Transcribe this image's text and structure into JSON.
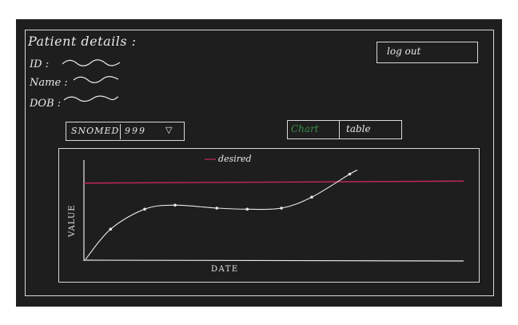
{
  "patient": {
    "heading": "Patient details :",
    "id_label": "ID :",
    "name_label": "Name :",
    "dob_label": "DOB :"
  },
  "header": {
    "logout_label": "log   out"
  },
  "code_select": {
    "system": "SNOMED",
    "value": "999",
    "arrow": "▽"
  },
  "view_toggle": {
    "chart_label": "Chart",
    "table_label": "table",
    "active": "chart",
    "active_color": "#3a8f4a"
  },
  "chart_data": {
    "type": "line",
    "xlabel": "DATE",
    "ylabel": "VALUE",
    "legend": [
      {
        "name": "desired",
        "color": "#c2285a"
      }
    ],
    "desired_line": {
      "y_start": 0.77,
      "y_end": 0.79,
      "color": "#c2285a"
    },
    "series": [
      {
        "name": "",
        "color": "#e8e8e8",
        "x": [
          0.07,
          0.16,
          0.24,
          0.35,
          0.43,
          0.52,
          0.6,
          0.7
        ],
        "y": [
          0.31,
          0.51,
          0.55,
          0.52,
          0.51,
          0.52,
          0.63,
          0.86
        ]
      }
    ]
  }
}
